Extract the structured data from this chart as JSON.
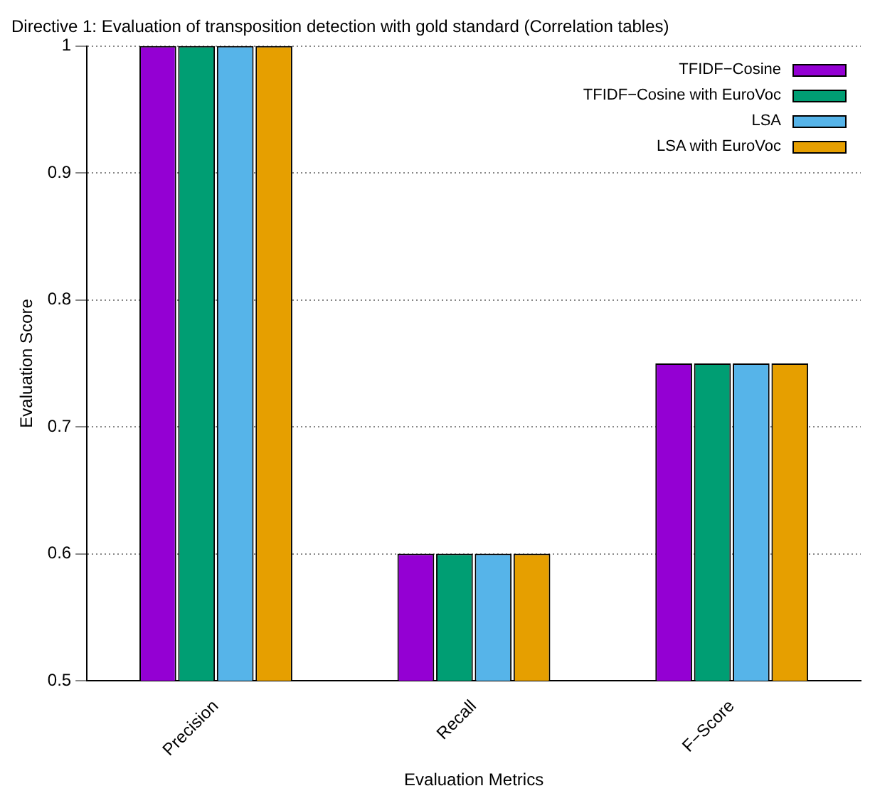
{
  "chart_data": {
    "type": "bar",
    "title": "Directive 1: Evaluation of transposition detection with gold standard (Correlation tables)",
    "xlabel": "Evaluation Metrics",
    "ylabel": "Evaluation Score",
    "categories": [
      "Precision",
      "Recall",
      "F−Score"
    ],
    "series": [
      {
        "name": "TFIDF−Cosine",
        "color": "#9400d3",
        "values": [
          1,
          0.6,
          0.75
        ]
      },
      {
        "name": "TFIDF−Cosine with EuroVoc",
        "color": "#009e73",
        "values": [
          1,
          0.6,
          0.75
        ]
      },
      {
        "name": "LSA",
        "color": "#56b4e9",
        "values": [
          1,
          0.6,
          0.75
        ]
      },
      {
        "name": "LSA with EuroVoc",
        "color": "#e69f00",
        "values": [
          1,
          0.6,
          0.75
        ]
      }
    ],
    "ylim": [
      0.5,
      1
    ],
    "yticks": [
      0.5,
      0.6,
      0.7,
      0.8,
      0.9,
      1
    ],
    "grid": "y",
    "legend": "top right"
  }
}
